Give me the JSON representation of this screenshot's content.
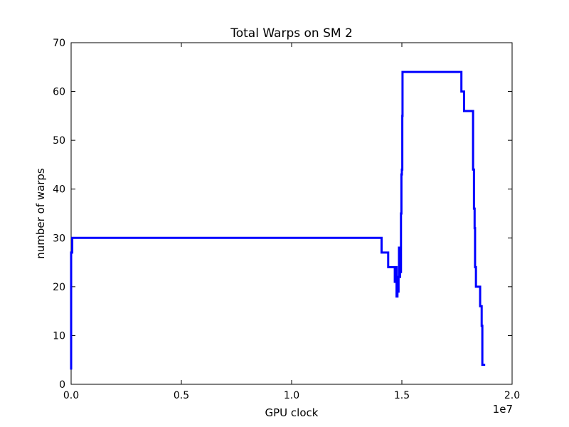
{
  "chart_data": {
    "type": "line",
    "title": "Total Warps on SM 2",
    "xlabel": "GPU clock",
    "ylabel": "number of warps",
    "x_offset_label": "1e7",
    "x_scale": 10000000,
    "xlim": [
      0,
      20000000
    ],
    "ylim": [
      0,
      70
    ],
    "xticks": [
      0,
      5000000,
      10000000,
      15000000,
      20000000
    ],
    "xtick_labels": [
      "0.0",
      "0.5",
      "1.0",
      "1.5",
      "2.0"
    ],
    "yticks": [
      0,
      10,
      20,
      30,
      40,
      50,
      60,
      70
    ],
    "ytick_labels": [
      "0",
      "10",
      "20",
      "30",
      "40",
      "50",
      "60",
      "70"
    ],
    "grid": false,
    "line_color": "#0000ff",
    "series": [
      {
        "style": "step",
        "points": [
          [
            0,
            3
          ],
          [
            0,
            27
          ],
          [
            50000,
            27
          ],
          [
            50000,
            30
          ],
          [
            14080000,
            30
          ],
          [
            14080000,
            27
          ],
          [
            14380000,
            27
          ],
          [
            14380000,
            24
          ],
          [
            14680000,
            24
          ],
          [
            14680000,
            21
          ],
          [
            14730000,
            21
          ],
          [
            14730000,
            24
          ],
          [
            14760000,
            24
          ],
          [
            14760000,
            18
          ],
          [
            14800000,
            18
          ],
          [
            14800000,
            20
          ],
          [
            14830000,
            20
          ],
          [
            14830000,
            19
          ],
          [
            14850000,
            19
          ],
          [
            14850000,
            22
          ],
          [
            14870000,
            22
          ],
          [
            14870000,
            28
          ],
          [
            14890000,
            28
          ],
          [
            14890000,
            22
          ],
          [
            14920000,
            22
          ],
          [
            14920000,
            27
          ],
          [
            14940000,
            27
          ],
          [
            14940000,
            23
          ],
          [
            14960000,
            23
          ],
          [
            14960000,
            35
          ],
          [
            14980000,
            35
          ],
          [
            14980000,
            43
          ],
          [
            15000000,
            43
          ],
          [
            15000000,
            44
          ],
          [
            15020000,
            44
          ],
          [
            15020000,
            55
          ],
          [
            15030000,
            55
          ],
          [
            15030000,
            64
          ],
          [
            17700000,
            64
          ],
          [
            17700000,
            60
          ],
          [
            17820000,
            60
          ],
          [
            17820000,
            56
          ],
          [
            18230000,
            56
          ],
          [
            18230000,
            44
          ],
          [
            18270000,
            44
          ],
          [
            18270000,
            36
          ],
          [
            18300000,
            36
          ],
          [
            18300000,
            32
          ],
          [
            18320000,
            32
          ],
          [
            18320000,
            24
          ],
          [
            18360000,
            24
          ],
          [
            18360000,
            20
          ],
          [
            18550000,
            20
          ],
          [
            18550000,
            16
          ],
          [
            18620000,
            16
          ],
          [
            18620000,
            12
          ],
          [
            18650000,
            12
          ],
          [
            18650000,
            4
          ],
          [
            18780000,
            4
          ]
        ]
      }
    ]
  }
}
